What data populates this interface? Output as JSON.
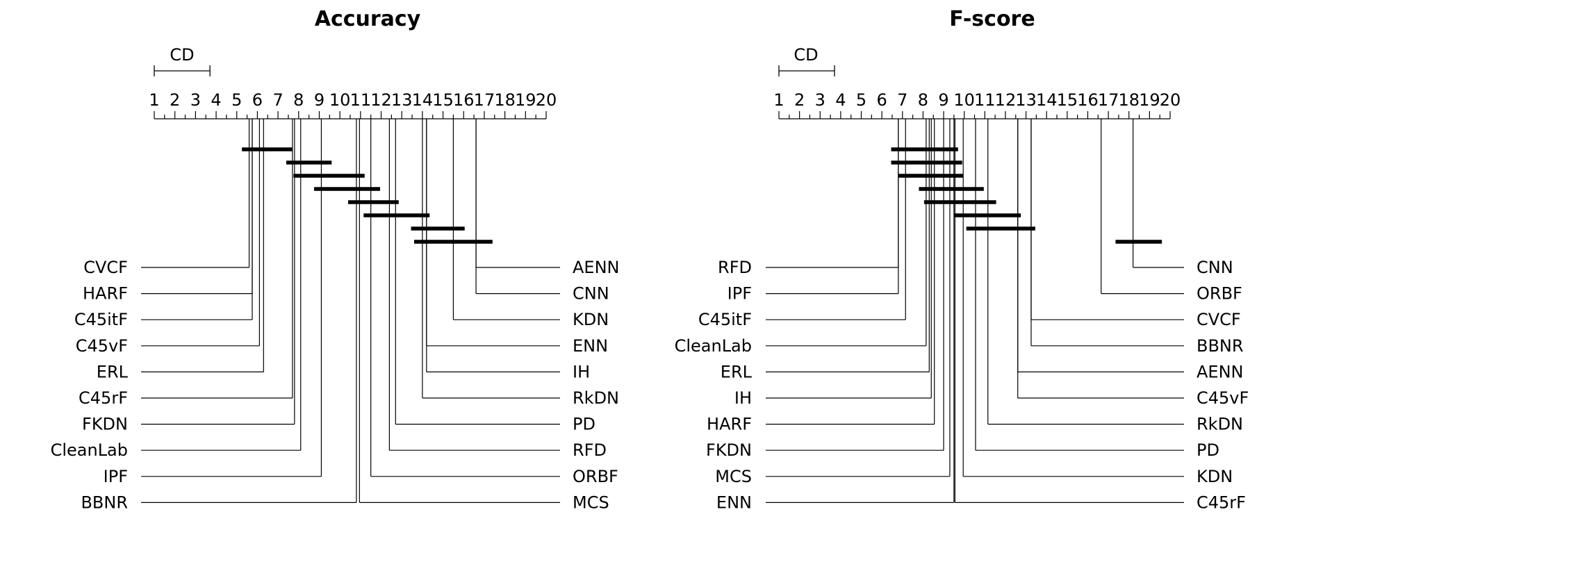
{
  "chart_data": [
    {
      "type": "critical-difference",
      "title": "Accuracy",
      "cd_label": "CD",
      "cd_value": 2.7,
      "axis_range": [
        1,
        20
      ],
      "tick_labels": [
        "1",
        "2",
        "3",
        "4",
        "5",
        "6",
        "7",
        "8",
        "9",
        "10",
        "11",
        "12",
        "13",
        "14",
        "15",
        "16",
        "17",
        "18",
        "19",
        "20"
      ],
      "left_methods": [
        {
          "name": "CVCF",
          "rank": 5.6
        },
        {
          "name": "HARF",
          "rank": 5.75
        },
        {
          "name": "C45itF",
          "rank": 5.75
        },
        {
          "name": "C45vF",
          "rank": 6.1
        },
        {
          "name": "ERL",
          "rank": 6.3
        },
        {
          "name": "C45rF",
          "rank": 7.7
        },
        {
          "name": "FKDN",
          "rank": 7.8
        },
        {
          "name": "CleanLab",
          "rank": 8.1
        },
        {
          "name": "IPF",
          "rank": 9.1
        },
        {
          "name": "BBNR",
          "rank": 10.8
        }
      ],
      "right_methods": [
        {
          "name": "AENN",
          "rank": 16.6
        },
        {
          "name": "CNN",
          "rank": 16.6
        },
        {
          "name": "KDN",
          "rank": 15.5
        },
        {
          "name": "ENN",
          "rank": 14.2
        },
        {
          "name": "IH",
          "rank": 14.2
        },
        {
          "name": "RkDN",
          "rank": 14.0
        },
        {
          "name": "PD",
          "rank": 12.7
        },
        {
          "name": "RFD",
          "rank": 12.4
        },
        {
          "name": "ORBF",
          "rank": 11.5
        },
        {
          "name": "MCS",
          "rank": 10.95
        }
      ],
      "cliques": [
        [
          5.25,
          7.7
        ],
        [
          7.4,
          9.6
        ],
        [
          7.75,
          11.2
        ],
        [
          8.75,
          11.95
        ],
        [
          10.4,
          12.85
        ],
        [
          11.15,
          14.35
        ],
        [
          13.45,
          16.05
        ],
        [
          13.6,
          17.4
        ]
      ]
    },
    {
      "type": "critical-difference",
      "title": "F-score",
      "cd_label": "CD",
      "cd_value": 2.7,
      "axis_range": [
        1,
        20
      ],
      "tick_labels": [
        "1",
        "2",
        "3",
        "4",
        "5",
        "6",
        "7",
        "8",
        "9",
        "10",
        "11",
        "12",
        "13",
        "14",
        "15",
        "16",
        "17",
        "18",
        "19",
        "20"
      ],
      "left_methods": [
        {
          "name": "RFD",
          "rank": 6.8
        },
        {
          "name": "IPF",
          "rank": 6.8
        },
        {
          "name": "C45itF",
          "rank": 7.15
        },
        {
          "name": "CleanLab",
          "rank": 8.15
        },
        {
          "name": "ERL",
          "rank": 8.3
        },
        {
          "name": "IH",
          "rank": 8.4
        },
        {
          "name": "HARF",
          "rank": 8.55
        },
        {
          "name": "FKDN",
          "rank": 9.0
        },
        {
          "name": "MCS",
          "rank": 9.3
        },
        {
          "name": "ENN",
          "rank": 9.5
        }
      ],
      "right_methods": [
        {
          "name": "CNN",
          "rank": 18.2
        },
        {
          "name": "ORBF",
          "rank": 16.65
        },
        {
          "name": "CVCF",
          "rank": 13.25
        },
        {
          "name": "BBNR",
          "rank": 13.25
        },
        {
          "name": "AENN",
          "rank": 12.6
        },
        {
          "name": "C45vF",
          "rank": 12.6
        },
        {
          "name": "RkDN",
          "rank": 11.15
        },
        {
          "name": "PD",
          "rank": 10.55
        },
        {
          "name": "KDN",
          "rank": 9.95
        },
        {
          "name": "C45rF",
          "rank": 9.55
        }
      ],
      "cliques": [
        [
          6.45,
          9.7
        ],
        [
          6.45,
          9.9
        ],
        [
          6.8,
          9.95
        ],
        [
          7.8,
          10.95
        ],
        [
          8.05,
          11.55
        ],
        [
          9.5,
          12.75
        ],
        [
          10.1,
          13.45
        ],
        [
          17.35,
          19.6
        ]
      ]
    }
  ]
}
